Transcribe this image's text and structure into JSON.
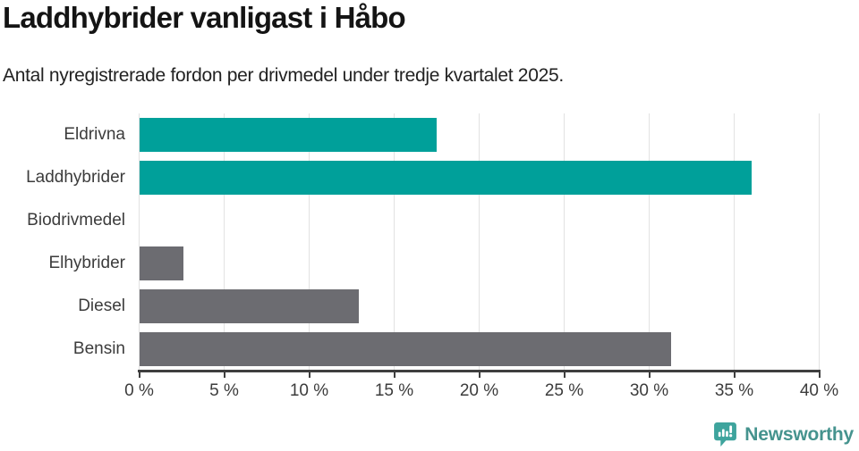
{
  "header": {
    "title": "Laddhybrider vanligast i Håbo",
    "subtitle": "Antal nyregistrerade fordon per drivmedel under tredje kvartalet 2025."
  },
  "chart_data": {
    "type": "bar",
    "orientation": "horizontal",
    "title": "Laddhybrider vanligast i Håbo",
    "subtitle": "Antal nyregistrerade fordon per drivmedel under tredje kvartalet 2025.",
    "categories": [
      "Eldrivna",
      "Laddhybrider",
      "Biodrivmedel",
      "Elhybrider",
      "Diesel",
      "Bensin"
    ],
    "values": [
      17.5,
      36,
      0,
      2.6,
      12.9,
      31.3
    ],
    "unit": "%",
    "xlabel": "",
    "ylabel": "",
    "xlim": [
      0,
      40
    ],
    "xticks": [
      0,
      5,
      10,
      15,
      20,
      25,
      30,
      35,
      40
    ],
    "xtick_suffix": " %",
    "grid": true,
    "legend_position": "none",
    "bar_colors": [
      "#00a09a",
      "#00a09a",
      "#6c6c71",
      "#6c6c71",
      "#6c6c71",
      "#6c6c71"
    ],
    "colors": {
      "highlight": "#00a09a",
      "default": "#6c6c71",
      "gridline": "#e2e2e2",
      "axis": "#3f3f3f",
      "text": "#3c3c3c"
    }
  },
  "footer": {
    "brand": "Newsworthy",
    "logo_icon": "newsworthy-speech-bubble-bar-chart-icon",
    "logo_icon_color": "#3ea49d",
    "wordmark_color": "#45938e"
  }
}
